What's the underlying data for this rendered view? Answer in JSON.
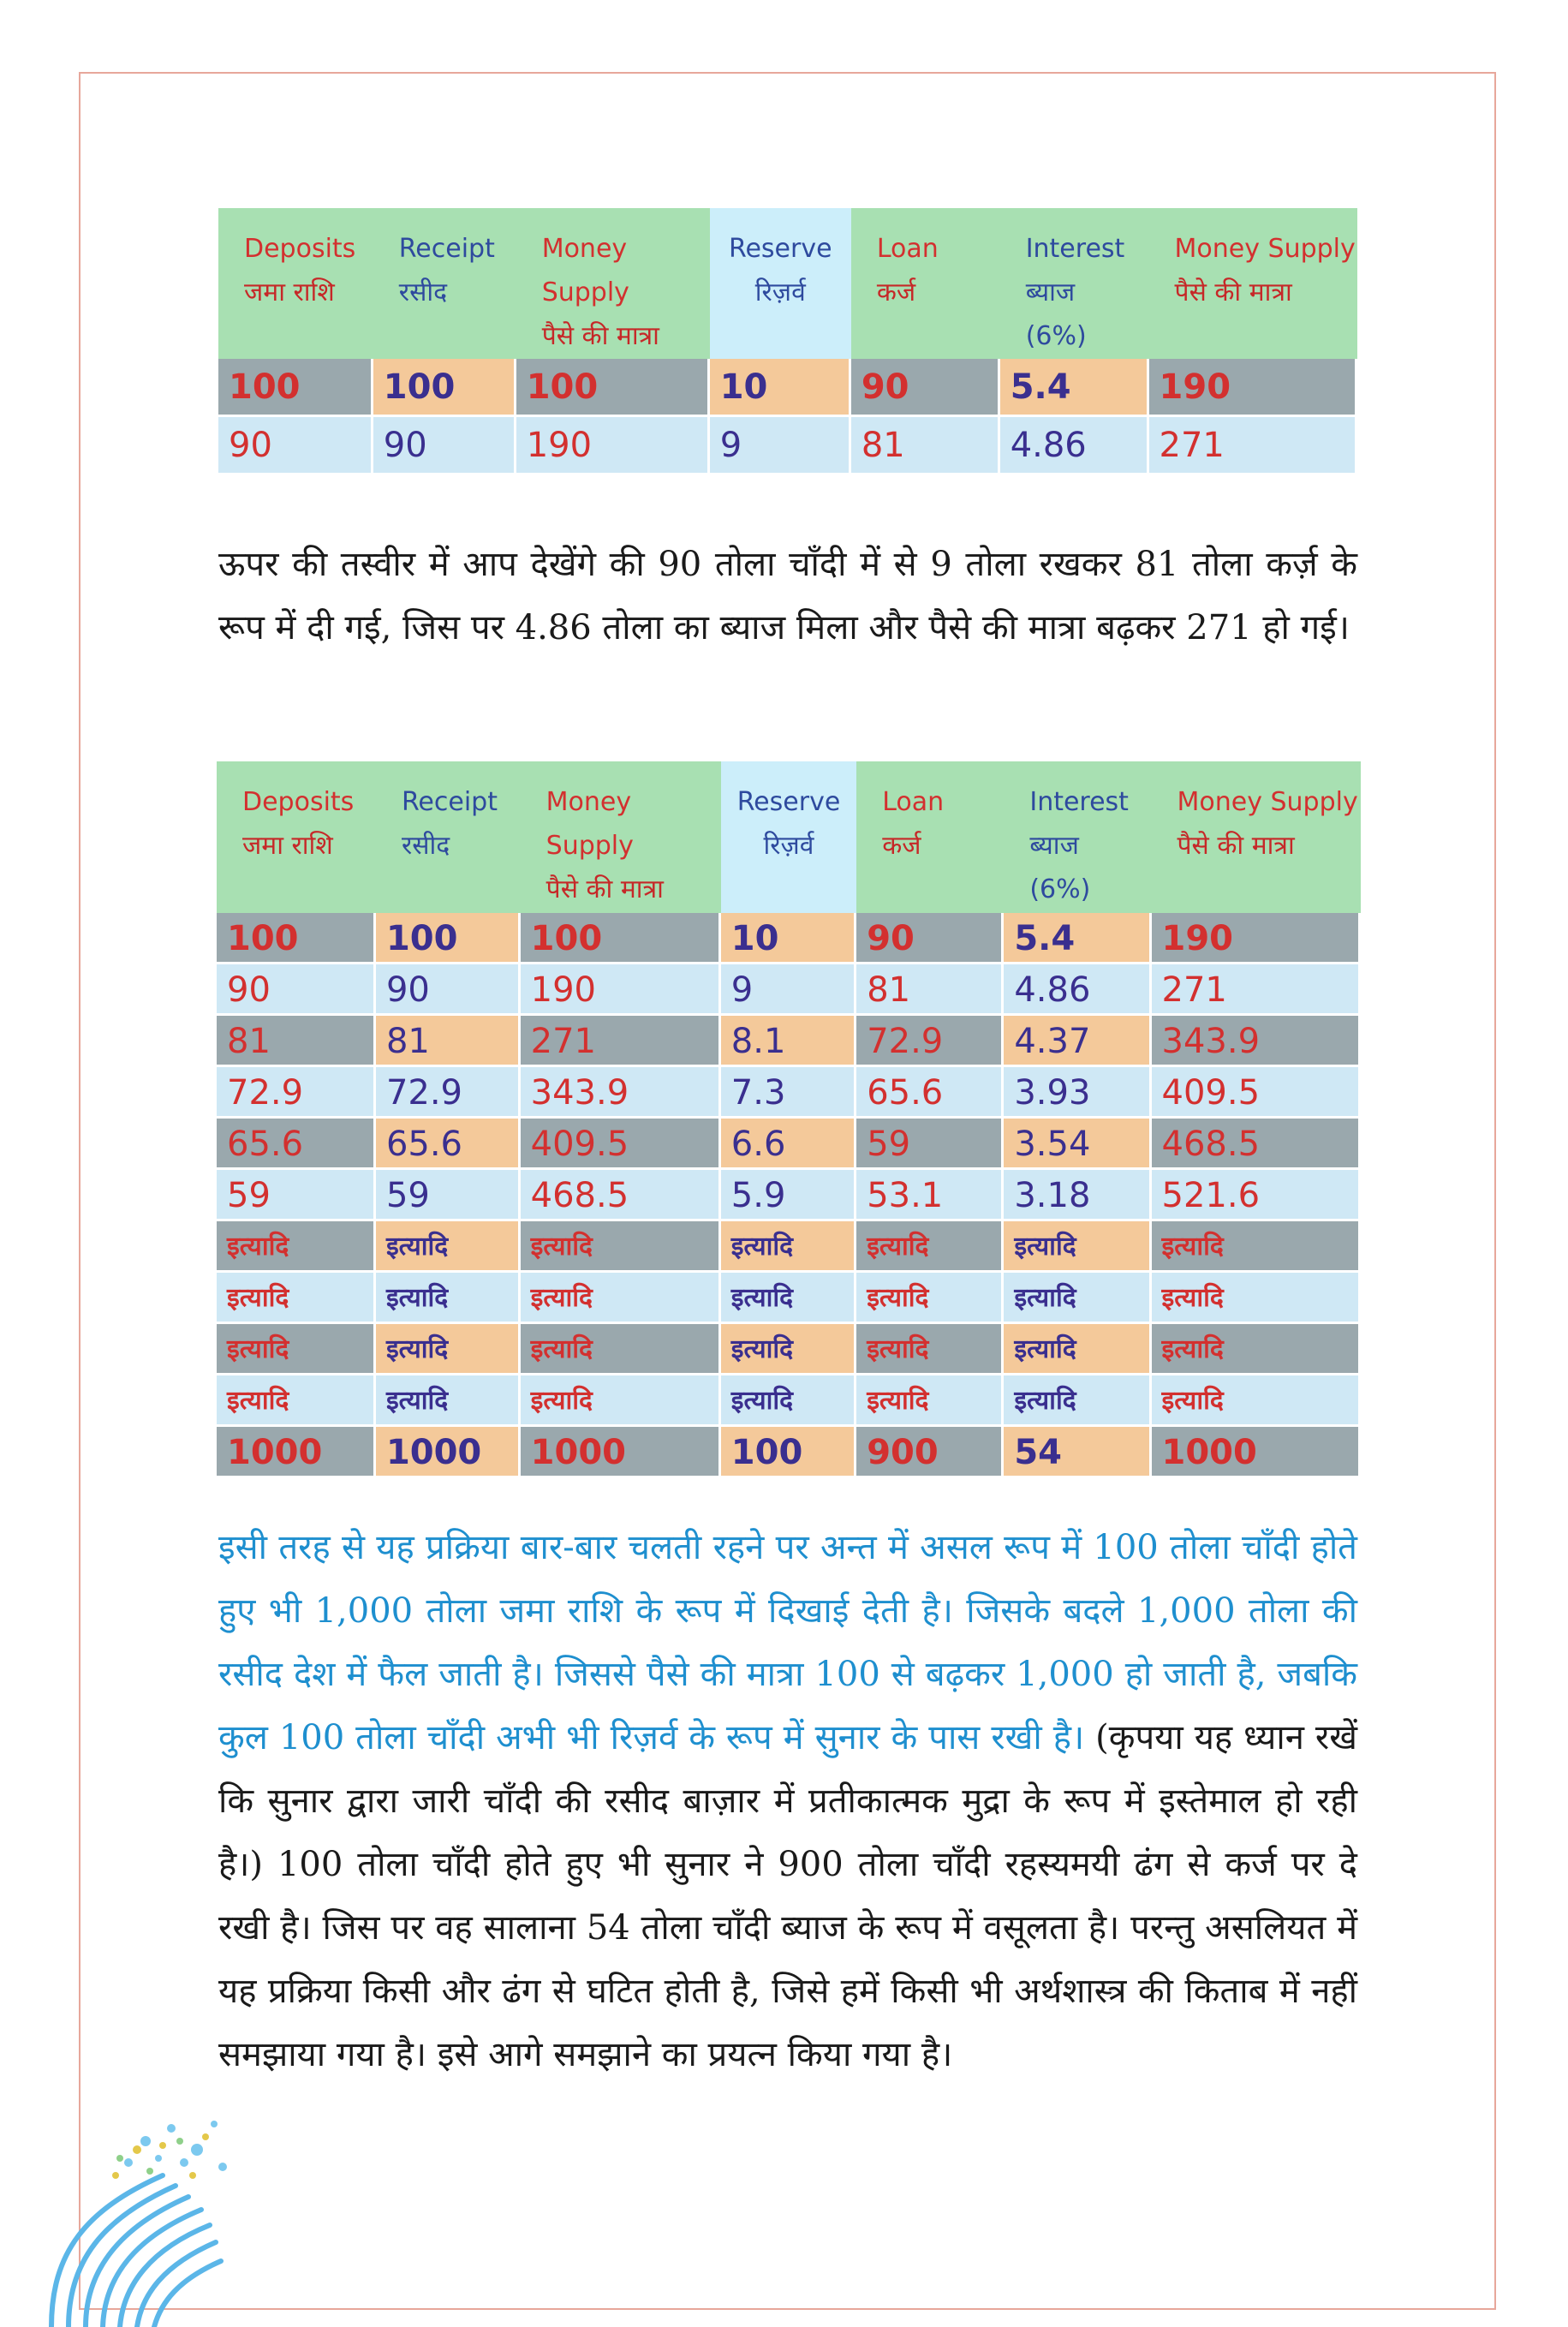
{
  "columns": [
    {
      "en": "Deposits",
      "hi": "जमा राशि",
      "sub": "",
      "en_color": "#d3302f",
      "hi_color": "#c62828"
    },
    {
      "en": "Receipt",
      "hi": "रसीद",
      "sub": "",
      "en_color": "#2e4a9e",
      "hi_color": "#2e4a9e"
    },
    {
      "en": "Money Supply",
      "hi": "पैसे की मात्रा",
      "sub": "",
      "en_color": "#d3302f",
      "hi_color": "#c62828"
    },
    {
      "en": "Reserve",
      "hi": "रिज़र्व",
      "sub": "",
      "en_color": "#2e4a9e",
      "hi_color": "#2e4a9e"
    },
    {
      "en": "Loan",
      "hi": "कर्ज",
      "sub": "",
      "en_color": "#d3302f",
      "hi_color": "#c62828"
    },
    {
      "en": "Interest",
      "hi": "ब्याज",
      "sub": "(6%)",
      "en_color": "#2e4a9e",
      "hi_color": "#2e4a9e"
    },
    {
      "en": "Money Supply",
      "hi": "पैसे की मात्रा",
      "sub": "",
      "en_color": "#d3302f",
      "hi_color": "#c62828"
    }
  ],
  "table1": {
    "rows": [
      [
        "100",
        "100",
        "100",
        "10",
        "90",
        "5.4",
        "190"
      ],
      [
        "90",
        "90",
        "190",
        "9",
        "81",
        "4.86",
        "271"
      ]
    ]
  },
  "paragraph1": "ऊपर की तस्वीर में आप देखेंगे की 90 तोला चाँदी में से 9 तोला रखकर 81 तोला कर्ज़ के रूप में दी गई, जिस पर 4.86 तोला का ब्याज मिला और पैसे की मात्रा बढ़कर 271 हो गई।",
  "table2": {
    "rows": [
      [
        "100",
        "100",
        "100",
        "10",
        "90",
        "5.4",
        "190"
      ],
      [
        "90",
        "90",
        "190",
        "9",
        "81",
        "4.86",
        "271"
      ],
      [
        "81",
        "81",
        "271",
        "8.1",
        "72.9",
        "4.37",
        "343.9"
      ],
      [
        "72.9",
        "72.9",
        "343.9",
        "7.3",
        "65.6",
        "3.93",
        "409.5"
      ],
      [
        "65.6",
        "65.6",
        "409.5",
        "6.6",
        "59",
        "3.54",
        "468.5"
      ],
      [
        "59",
        "59",
        "468.5",
        "5.9",
        "53.1",
        "3.18",
        "521.6"
      ],
      [
        "इत्यादि",
        "इत्यादि",
        "इत्यादि",
        "इत्यादि",
        "इत्यादि",
        "इत्यादि",
        "इत्यादि"
      ],
      [
        "इत्यादि",
        "इत्यादि",
        "इत्यादि",
        "इत्यादि",
        "इत्यादि",
        "इत्यादि",
        "इत्यादि"
      ],
      [
        "इत्यादि",
        "इत्यादि",
        "इत्यादि",
        "इत्यादि",
        "इत्यादि",
        "इत्यादि",
        "इत्यादि"
      ],
      [
        "इत्यादि",
        "इत्यादि",
        "इत्यादि",
        "इत्यादि",
        "इत्यादि",
        "इत्यादि",
        "इत्यादि"
      ],
      [
        "1000",
        "1000",
        "1000",
        "100",
        "900",
        "54",
        "1000"
      ]
    ]
  },
  "paragraph2_blue": "इसी तरह से यह प्रक्रिया बार-बार चलती रहने पर अन्त में असल रूप में 100 तोला चाँदी होते हुए भी 1,000 तोला जमा राशि के रूप में दिखाई देती है। जिसके बदले 1,000 तोला की रसीद देश में फैल जाती है। जिससे पैसे की मात्रा 100 से बढ़कर 1,000 हो जाती है, जबकि कुल 100 तोला चाँदी अभी भी रिज़र्व के रूप में सुनार के पास रखी है।",
  "paragraph2_dark": " (कृपया यह ध्यान रखें कि सुनार द्वारा जारी चाँदी की रसीद बाज़ार में प्रतीकात्मक मुद्रा के रूप में इस्तेमाल हो रही है।) 100 तोला चाँदी होते हुए भी सुनार ने 900 तोला चाँदी रहस्यमयी ढंग से कर्ज पर दे रखी है। जिस पर वह सालाना 54 तोला चाँदी ब्याज के रूप में वसूलता है। परन्तु असलियत में यह प्रक्रिया किसी और ढंग से घटित होती है, जिसे हमें किसी भी अर्थशास्त्र की किताब में नहीं समझाया गया है। इसे आगे समझाने का प्रयत्न किया गया है।",
  "colors": {
    "header_bg": "#a8e0b2",
    "reserve_header_bg": "#cceefa",
    "row_gray": "#9aa8ad",
    "row_light": "#cfe8f5",
    "col_orange": "#f4c99a",
    "text_red": "#d3302f",
    "text_blue": "#3a2f8f",
    "para_blue": "#1e8fcf"
  }
}
